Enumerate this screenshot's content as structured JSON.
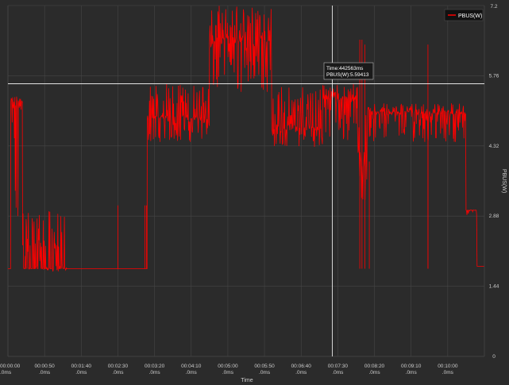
{
  "chart_data": {
    "type": "line",
    "title": "",
    "xlabel": "Time",
    "ylabel": "PBUS(W)",
    "ylim": [
      0,
      7.2
    ],
    "xlim_seconds": [
      0,
      650
    ],
    "x_ticks": [
      {
        "s": 0,
        "line1": "00:00:00",
        "line2": ".0ms"
      },
      {
        "s": 50,
        "line1": "00:00:50",
        "line2": ".0ms"
      },
      {
        "s": 100,
        "line1": "00:01:40",
        "line2": ".0ms"
      },
      {
        "s": 150,
        "line1": "00:02:30",
        "line2": ".0ms"
      },
      {
        "s": 200,
        "line1": "00:03:20",
        "line2": ".0ms"
      },
      {
        "s": 250,
        "line1": "00:04:10",
        "line2": ".0ms"
      },
      {
        "s": 300,
        "line1": "00:05:00",
        "line2": ".0ms"
      },
      {
        "s": 350,
        "line1": "00:05:50",
        "line2": ".0ms"
      },
      {
        "s": 400,
        "line1": "00:06:40",
        "line2": ".0ms"
      },
      {
        "s": 450,
        "line1": "00:07:30",
        "line2": ".0ms"
      },
      {
        "s": 500,
        "line1": "00:08:20",
        "line2": ".0ms"
      },
      {
        "s": 550,
        "line1": "00:09:10",
        "line2": ".0ms"
      },
      {
        "s": 600,
        "line1": "00:10:00",
        "line2": ".0ms"
      }
    ],
    "y_ticks": [
      "0",
      "1.44",
      "2.88",
      "4.32",
      "5.76",
      "7.2"
    ],
    "grid": true,
    "legend_position": "top-right",
    "series": [
      {
        "name": "PBUS(W)",
        "color": "#ff0000",
        "segments": [
          {
            "start_s": 0,
            "end_s": 4,
            "base": 1.8,
            "low": 1.8,
            "high": 1.8
          },
          {
            "start_s": 4,
            "end_s": 20,
            "base": 5.2,
            "low": 1.8,
            "high": 5.3
          },
          {
            "start_s": 20,
            "end_s": 80,
            "base": 1.8,
            "low": 1.8,
            "high": 3.0
          },
          {
            "start_s": 80,
            "end_s": 190,
            "base": 1.8,
            "low": 1.8,
            "high": 1.8
          },
          {
            "start_s": 190,
            "end_s": 275,
            "base": 4.9,
            "low": 4.4,
            "high": 5.6
          },
          {
            "start_s": 275,
            "end_s": 360,
            "base": 6.5,
            "low": 5.4,
            "high": 7.2
          },
          {
            "start_s": 360,
            "end_s": 430,
            "base": 4.7,
            "low": 4.3,
            "high": 5.6
          },
          {
            "start_s": 430,
            "end_s": 477,
            "base": 5.3,
            "low": 4.4,
            "high": 5.6
          },
          {
            "start_s": 477,
            "end_s": 490,
            "base": 4.1,
            "low": 3.2,
            "high": 6.5
          },
          {
            "start_s": 490,
            "end_s": 625,
            "base": 5.0,
            "low": 4.4,
            "high": 5.2
          },
          {
            "start_s": 625,
            "end_s": 640,
            "base": 3.0,
            "low": 2.9,
            "high": 3.0
          },
          {
            "start_s": 640,
            "end_s": 650,
            "base": 1.85,
            "low": 1.85,
            "high": 1.85
          }
        ],
        "spikes": [
          {
            "s": 150,
            "value": 3.1
          },
          {
            "s": 187,
            "value": 3.1
          },
          {
            "s": 189,
            "value": 3.1
          },
          {
            "s": 480,
            "value": 6.5
          },
          {
            "s": 483,
            "value": 6.5
          },
          {
            "s": 487,
            "value": 6.4
          },
          {
            "s": 573,
            "value": 6.4
          },
          {
            "s": 493,
            "value": 4.0
          },
          {
            "s": 573,
            "value": 4.6
          }
        ]
      }
    ],
    "crosshair": {
      "x_s": 442.563,
      "y_value": 5.59413
    },
    "tooltip": {
      "line1": "Time:442563ms",
      "line2": "PBUS(W):5.59413"
    }
  },
  "colors": {
    "background": "#2b2b2b",
    "grid": "#464646",
    "axis_text": "#cccccc",
    "series": "#ff0000",
    "crosshair": "#ffffff"
  }
}
